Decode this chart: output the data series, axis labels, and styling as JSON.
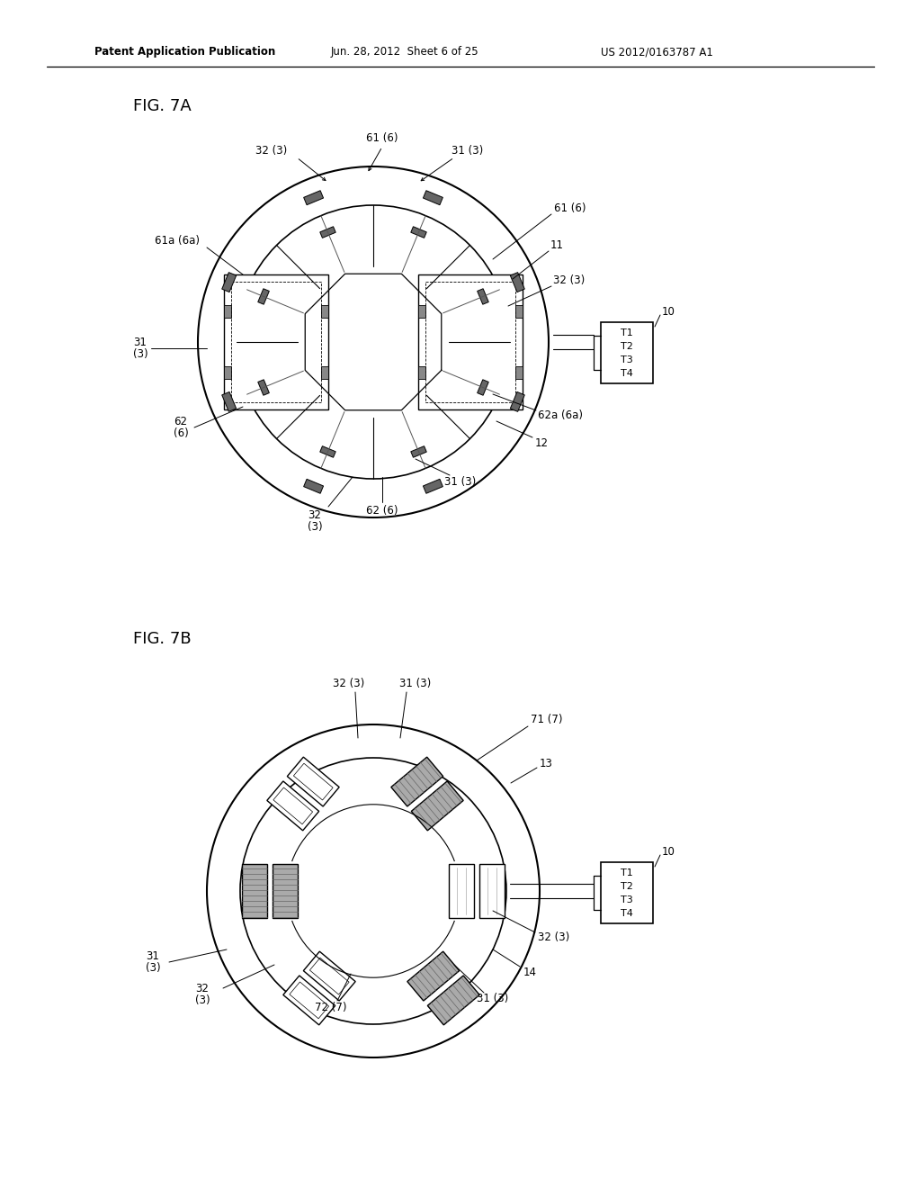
{
  "bg_color": "#ffffff",
  "line_color": "#000000",
  "header_left": "Patent Application Publication",
  "header_mid": "Jun. 28, 2012  Sheet 6 of 25",
  "header_right": "US 2012/0163787 A1",
  "fig7a_label": "FIG. 7A",
  "fig7b_label": "FIG. 7B",
  "gray_fill": "#aaaaaa",
  "dark_fill": "#777777",
  "hatch_fill": "#999999",
  "cx7a": 415,
  "cy7a": 380,
  "r_out7a": 195,
  "r_in7a": 152,
  "cx7b": 415,
  "cy7b": 990,
  "r_out7b": 185,
  "r_in7b": 148
}
